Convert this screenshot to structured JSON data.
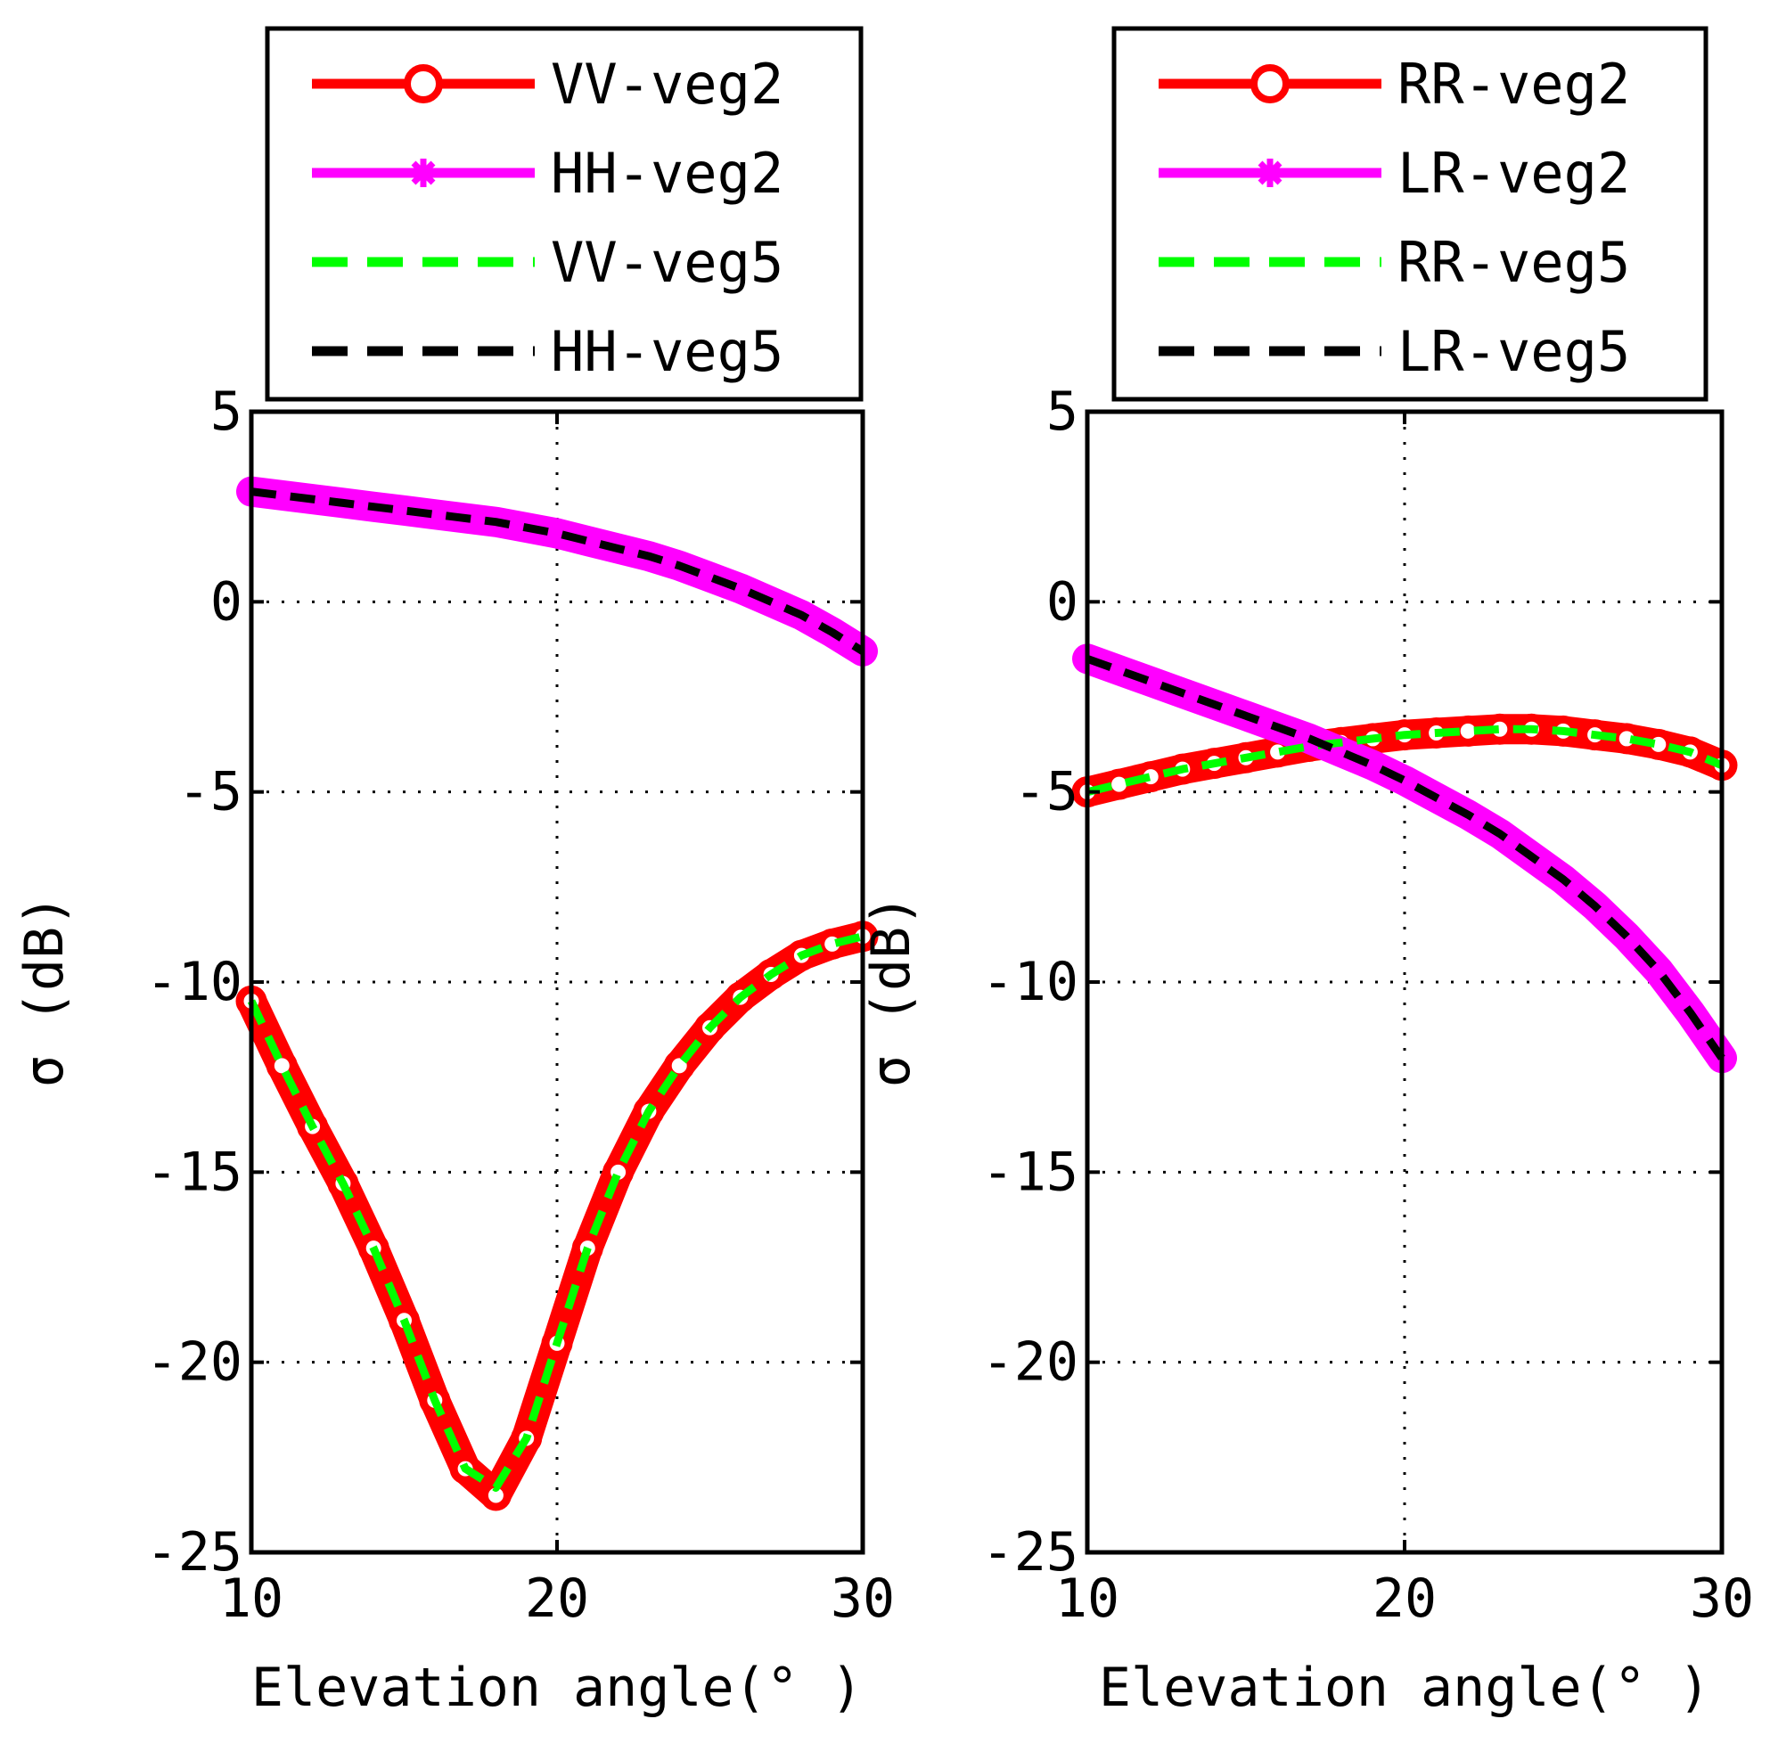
{
  "chart_data": [
    {
      "type": "line",
      "xlabel": "Elevation angle(° )",
      "ylabel": "σ (dB)",
      "xlim": [
        10,
        30
      ],
      "ylim": [
        -25,
        5
      ],
      "xticks": [
        10,
        20,
        30
      ],
      "yticks": [
        5,
        0,
        -5,
        -10,
        -15,
        -20,
        -25
      ],
      "xtick_labels": [
        "10",
        "20",
        "30"
      ],
      "ytick_labels": [
        "5",
        "0",
        "-5",
        "-10",
        "-15",
        "-20",
        "-25"
      ],
      "grid": true,
      "legend_position": "top",
      "x": [
        10,
        11,
        12,
        13,
        14,
        15,
        16,
        17,
        18,
        19,
        20,
        21,
        22,
        23,
        24,
        25,
        26,
        27,
        28,
        29,
        30
      ],
      "series": [
        {
          "name": "VV-veg2",
          "color": "#ff0000",
          "style": "solid-circle",
          "values": [
            -10.5,
            -12.2,
            -13.8,
            -15.3,
            -17.0,
            -18.9,
            -21.0,
            -22.8,
            -23.5,
            -22.0,
            -19.5,
            -17.0,
            -15.0,
            -13.4,
            -12.2,
            -11.2,
            -10.4,
            -9.8,
            -9.3,
            -9.0,
            -8.8
          ]
        },
        {
          "name": "HH-veg2",
          "color": "#ff00ff",
          "style": "solid-star",
          "values": [
            2.9,
            2.8,
            2.7,
            2.6,
            2.5,
            2.4,
            2.3,
            2.2,
            2.1,
            1.95,
            1.8,
            1.6,
            1.4,
            1.2,
            0.95,
            0.65,
            0.35,
            0.0,
            -0.35,
            -0.8,
            -1.3
          ]
        },
        {
          "name": "VV-veg5",
          "color": "#00ff00",
          "style": "dashed",
          "values": [
            -10.5,
            -12.2,
            -13.8,
            -15.3,
            -17.0,
            -18.9,
            -21.0,
            -22.8,
            -23.3,
            -22.0,
            -19.5,
            -17.0,
            -15.0,
            -13.4,
            -12.2,
            -11.2,
            -10.4,
            -9.8,
            -9.3,
            -9.0,
            -8.8
          ]
        },
        {
          "name": "HH-veg5",
          "color": "#000000",
          "style": "dashed",
          "values": [
            2.9,
            2.8,
            2.7,
            2.6,
            2.5,
            2.4,
            2.3,
            2.2,
            2.1,
            1.95,
            1.8,
            1.6,
            1.4,
            1.2,
            0.95,
            0.65,
            0.35,
            0.0,
            -0.35,
            -0.8,
            -1.3
          ]
        }
      ]
    },
    {
      "type": "line",
      "xlabel": "Elevation angle(° )",
      "ylabel": "σ (dB)",
      "xlim": [
        10,
        30
      ],
      "ylim": [
        -25,
        5
      ],
      "xticks": [
        10,
        20,
        30
      ],
      "yticks": [
        5,
        0,
        -5,
        -10,
        -15,
        -20,
        -25
      ],
      "xtick_labels": [
        "10",
        "20",
        "30"
      ],
      "ytick_labels": [
        "5",
        "0",
        "-5",
        "-10",
        "-15",
        "-20",
        "-25"
      ],
      "grid": true,
      "legend_position": "top",
      "x": [
        10,
        11,
        12,
        13,
        14,
        15,
        16,
        17,
        18,
        19,
        20,
        21,
        22,
        23,
        24,
        25,
        26,
        27,
        28,
        29,
        30
      ],
      "series": [
        {
          "name": "RR-veg2",
          "color": "#ff0000",
          "style": "solid-circle",
          "values": [
            -5.0,
            -4.8,
            -4.6,
            -4.4,
            -4.25,
            -4.1,
            -3.95,
            -3.8,
            -3.7,
            -3.6,
            -3.5,
            -3.45,
            -3.4,
            -3.35,
            -3.35,
            -3.4,
            -3.5,
            -3.6,
            -3.75,
            -3.95,
            -4.3
          ]
        },
        {
          "name": "LR-veg2",
          "color": "#ff00ff",
          "style": "solid-star",
          "values": [
            -1.5,
            -1.8,
            -2.1,
            -2.4,
            -2.7,
            -3.0,
            -3.3,
            -3.6,
            -3.95,
            -4.3,
            -4.7,
            -5.15,
            -5.6,
            -6.1,
            -6.7,
            -7.3,
            -8.0,
            -8.8,
            -9.7,
            -10.8,
            -12.0
          ]
        },
        {
          "name": "RR-veg5",
          "color": "#00ff00",
          "style": "dashed",
          "values": [
            -5.0,
            -4.8,
            -4.6,
            -4.4,
            -4.25,
            -4.1,
            -3.95,
            -3.8,
            -3.7,
            -3.6,
            -3.5,
            -3.45,
            -3.4,
            -3.35,
            -3.35,
            -3.4,
            -3.5,
            -3.6,
            -3.75,
            -3.95,
            -4.3
          ]
        },
        {
          "name": "LR-veg5",
          "color": "#000000",
          "style": "dashed",
          "values": [
            -1.5,
            -1.8,
            -2.1,
            -2.4,
            -2.7,
            -3.0,
            -3.3,
            -3.6,
            -3.95,
            -4.3,
            -4.7,
            -5.15,
            -5.6,
            -6.1,
            -6.7,
            -7.3,
            -8.0,
            -8.8,
            -9.7,
            -10.8,
            -12.0
          ]
        }
      ]
    }
  ]
}
